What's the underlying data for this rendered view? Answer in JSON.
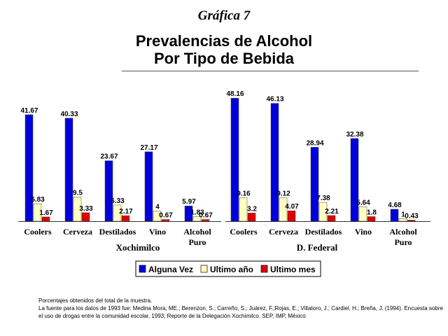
{
  "caption": "Gráfica 7",
  "title_line1": "Prevalencias de Alcohol",
  "title_line2": "Por Tipo de Bebida",
  "colors": {
    "Alguna Vez": "#0000dd",
    "Ultimo año": "#ffffc0",
    "Ultimo mes": "#dd0000"
  },
  "chart_data": {
    "type": "bar",
    "title": "Prevalencias de Alcohol Por Tipo de Bebida",
    "xlabel": "",
    "ylabel": "",
    "ylim": [
      0,
      50
    ],
    "grid": false,
    "legend_position": "bottom",
    "series_names": [
      "Alguna Vez",
      "Ultimo año",
      "Ultimo mes"
    ],
    "groups": [
      {
        "name": "Xochimilco",
        "categories": [
          "Coolers",
          "Cerveza",
          "Destilados",
          "Vino",
          "Alcohol Puro"
        ],
        "series": [
          {
            "name": "Alguna Vez",
            "values": [
              41.67,
              40.33,
              23.67,
              27.17,
              5.97
            ]
          },
          {
            "name": "Ultimo año",
            "values": [
              6.83,
              9.5,
              6.33,
              4,
              1.83
            ]
          },
          {
            "name": "Ultimo mes",
            "values": [
              1.67,
              3.33,
              2.17,
              0.67,
              0.67
            ]
          }
        ]
      },
      {
        "name": "D. Federal",
        "categories": [
          "Coolers",
          "Cerveza",
          "Destilados",
          "Vino",
          "Alcohol Puro"
        ],
        "series": [
          {
            "name": "Alguna Vez",
            "values": [
              48.16,
              46.13,
              28.94,
              32.38,
              4.68
            ]
          },
          {
            "name": "Ultimo año",
            "values": [
              9.16,
              9.12,
              7.38,
              5.64,
              1
            ]
          },
          {
            "name": "Ultimo mes",
            "values": [
              3.2,
              4.07,
              2.21,
              1.8,
              0.43
            ]
          }
        ]
      }
    ]
  },
  "footnote_line1": "Porcentajes obtenidos del total de la muestra.",
  "footnote_line2": "La fuente para los datos de 1993 fue: Medina Mora, ME.; Berenzon, S.; Carreño, S.; Juárez, F.;Rojas, E.; Villatoro, J.; Cardiel, H.; Breña, J. (1994). Encuesta sobre el uso de drogas entre la comunidad escolar, 1993; Reporte de la Delegación Xochimilco. SEP, IMP, México"
}
